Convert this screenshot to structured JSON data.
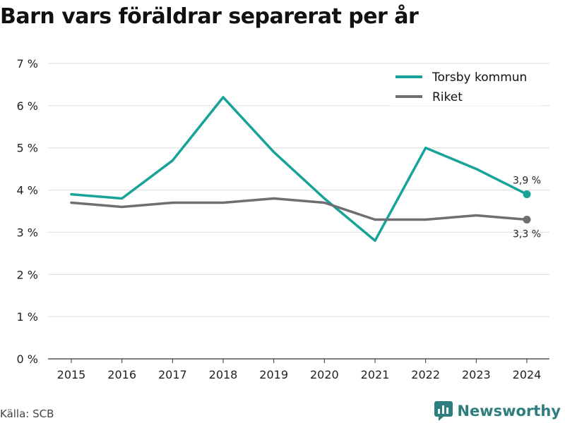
{
  "title": "Barn vars föräldrar separerat per år",
  "source": "Källa: SCB",
  "brand": "Newsworthy",
  "colors": {
    "torsby": "#17a398",
    "riket": "#6e6e73",
    "grid": "#dcdcdc",
    "axis": "#333333",
    "brand": "#2e7d7f"
  },
  "chart_data": {
    "type": "line",
    "title": "Barn vars föräldrar separerat per år",
    "xlabel": "",
    "ylabel": "",
    "x": [
      "2015",
      "2016",
      "2017",
      "2018",
      "2019",
      "2020",
      "2021",
      "2022",
      "2023",
      "2024"
    ],
    "ylim": [
      0,
      7
    ],
    "yticks": [
      "0 %",
      "1 %",
      "2 %",
      "3 %",
      "4 %",
      "5 %",
      "6 %",
      "7 %"
    ],
    "grid": "horizontal",
    "legend": "top-right",
    "series": [
      {
        "name": "Torsby kommun",
        "values": [
          3.9,
          3.8,
          4.7,
          6.2,
          4.9,
          3.8,
          2.8,
          5.0,
          4.5,
          3.9
        ],
        "end_label": "3,9 %"
      },
      {
        "name": "Riket",
        "values": [
          3.7,
          3.6,
          3.7,
          3.7,
          3.8,
          3.7,
          3.3,
          3.3,
          3.4,
          3.3
        ],
        "end_label": "3,3 %"
      }
    ]
  }
}
